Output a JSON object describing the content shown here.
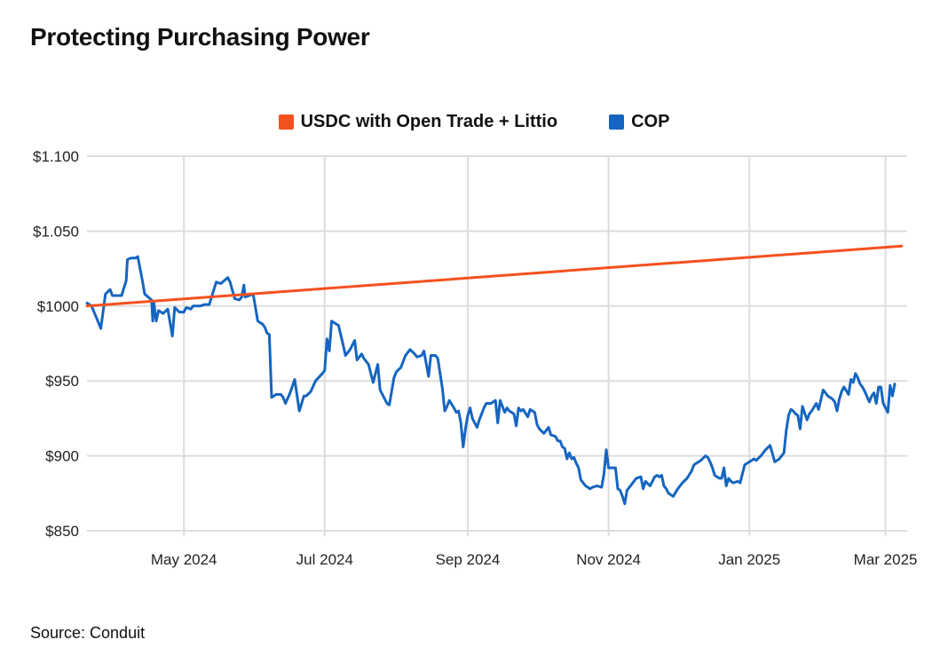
{
  "chart_data": {
    "type": "line",
    "title": "Protecting Purchasing Power",
    "xlabel": "",
    "ylabel": "",
    "ylim": [
      850,
      1100
    ],
    "grid": true,
    "legend_position": "top-center",
    "y_ticks": [
      {
        "value": 850,
        "label": "$850"
      },
      {
        "value": 900,
        "label": "$900"
      },
      {
        "value": 950,
        "label": "$950"
      },
      {
        "value": 1000,
        "label": "$1000"
      },
      {
        "value": 1050,
        "label": "$1.050"
      },
      {
        "value": 1100,
        "label": "$1.100"
      }
    ],
    "x_range": [
      0,
      348
    ],
    "x_ticks": [
      {
        "day": 42,
        "label": "May 2024"
      },
      {
        "day": 103,
        "label": "Jul 2024"
      },
      {
        "day": 165,
        "label": "Sep 2024"
      },
      {
        "day": 226,
        "label": "Nov 2024"
      },
      {
        "day": 287,
        "label": "Jan 2025"
      },
      {
        "day": 346,
        "label": "Mar 2025"
      }
    ],
    "series": [
      {
        "name": "USDC with Open Trade + Littio",
        "color": "#f4511e",
        "points": [
          [
            0,
            1000
          ],
          [
            353,
            1040
          ]
        ]
      },
      {
        "name": "COP",
        "color": "#1565c0",
        "points": [
          [
            0,
            1002
          ],
          [
            2,
            1000
          ],
          [
            6,
            985
          ],
          [
            8,
            1008
          ],
          [
            10,
            1011
          ],
          [
            11,
            1007
          ],
          [
            15,
            1007
          ],
          [
            17,
            1017
          ],
          [
            17.5,
            1031
          ],
          [
            19,
            1032
          ],
          [
            21,
            1032
          ],
          [
            22,
            1033
          ],
          [
            24,
            1017
          ],
          [
            25,
            1008
          ],
          [
            28,
            1004
          ],
          [
            28.5,
            990
          ],
          [
            29,
            1002
          ],
          [
            30,
            990
          ],
          [
            31,
            997
          ],
          [
            33,
            995
          ],
          [
            35,
            998
          ],
          [
            37,
            980
          ],
          [
            38,
            999
          ],
          [
            40,
            996
          ],
          [
            42,
            996
          ],
          [
            43,
            999
          ],
          [
            45,
            998
          ],
          [
            46,
            1000
          ],
          [
            49,
            1000
          ],
          [
            51,
            1001
          ],
          [
            53,
            1001
          ],
          [
            56,
            1016
          ],
          [
            58,
            1015
          ],
          [
            61,
            1019
          ],
          [
            62,
            1016
          ],
          [
            64,
            1005
          ],
          [
            66,
            1004
          ],
          [
            67,
            1006
          ],
          [
            68,
            1014
          ],
          [
            68.5,
            1006
          ],
          [
            72,
            1008
          ],
          [
            74,
            990
          ],
          [
            76,
            988
          ],
          [
            77,
            986
          ],
          [
            78,
            982
          ],
          [
            79,
            981
          ],
          [
            80,
            939
          ],
          [
            82,
            941
          ],
          [
            84,
            941
          ],
          [
            85,
            939
          ],
          [
            86,
            935
          ],
          [
            88,
            942
          ],
          [
            90,
            951
          ],
          [
            92,
            930
          ],
          [
            94,
            940
          ],
          [
            95,
            940
          ],
          [
            97,
            943
          ],
          [
            99,
            950
          ],
          [
            102,
            955
          ],
          [
            103,
            957
          ],
          [
            104,
            978
          ],
          [
            105,
            970
          ],
          [
            106,
            990
          ],
          [
            108,
            988
          ],
          [
            109,
            987
          ],
          [
            111,
            974
          ],
          [
            112,
            967
          ],
          [
            114,
            971
          ],
          [
            116,
            977
          ],
          [
            117,
            964
          ],
          [
            119,
            968
          ],
          [
            120,
            965
          ],
          [
            122,
            961
          ],
          [
            124,
            949
          ],
          [
            126,
            961
          ],
          [
            127,
            944
          ],
          [
            129,
            938
          ],
          [
            130,
            935
          ],
          [
            131,
            934
          ],
          [
            133,
            952
          ],
          [
            134,
            956
          ],
          [
            136,
            959
          ],
          [
            138,
            967
          ],
          [
            140,
            971
          ],
          [
            142,
            968
          ],
          [
            143,
            966
          ],
          [
            145,
            967
          ],
          [
            146,
            970
          ],
          [
            148,
            953
          ],
          [
            149,
            967
          ],
          [
            151,
            967
          ],
          [
            152,
            965
          ],
          [
            154,
            945
          ],
          [
            155,
            930
          ],
          [
            156,
            933
          ],
          [
            157,
            937
          ],
          [
            159,
            932
          ],
          [
            160,
            929
          ],
          [
            161,
            930
          ],
          [
            162,
            922
          ],
          [
            163,
            906
          ],
          [
            164,
            918
          ],
          [
            165,
            927
          ],
          [
            166,
            932
          ],
          [
            167,
            925
          ],
          [
            169,
            919
          ],
          [
            170,
            924
          ],
          [
            172,
            932
          ],
          [
            173,
            935
          ],
          [
            175,
            935
          ],
          [
            177,
            937
          ],
          [
            178,
            922
          ],
          [
            179,
            937
          ],
          [
            181,
            929
          ],
          [
            182,
            932
          ],
          [
            183,
            930
          ],
          [
            185,
            928
          ],
          [
            186,
            920
          ],
          [
            187,
            932
          ],
          [
            188,
            930
          ],
          [
            189,
            931
          ],
          [
            191,
            926
          ],
          [
            192,
            931
          ],
          [
            194,
            929
          ],
          [
            195,
            921
          ],
          [
            196,
            918
          ],
          [
            198,
            915
          ],
          [
            200,
            919
          ],
          [
            201,
            914
          ],
          [
            203,
            913
          ],
          [
            204,
            910
          ],
          [
            205,
            910
          ],
          [
            206,
            906
          ],
          [
            207,
            905
          ],
          [
            208,
            898
          ],
          [
            209,
            902
          ],
          [
            210,
            898
          ],
          [
            211,
            899
          ],
          [
            212,
            895
          ],
          [
            213,
            892
          ],
          [
            214,
            884
          ],
          [
            215,
            882
          ],
          [
            216,
            880
          ],
          [
            218,
            878
          ],
          [
            219,
            879
          ],
          [
            221,
            880
          ],
          [
            223,
            879
          ],
          [
            224,
            888
          ],
          [
            225,
            904
          ],
          [
            226,
            892
          ],
          [
            228,
            892
          ],
          [
            229,
            892
          ],
          [
            230,
            878
          ],
          [
            231,
            877
          ],
          [
            232,
            873
          ],
          [
            233,
            868
          ],
          [
            234,
            877
          ],
          [
            236,
            881
          ],
          [
            238,
            885
          ],
          [
            240,
            886
          ],
          [
            241,
            878
          ],
          [
            242,
            883
          ],
          [
            244,
            880
          ],
          [
            246,
            886
          ],
          [
            247,
            887
          ],
          [
            248,
            886
          ],
          [
            249,
            887
          ],
          [
            250,
            880
          ],
          [
            251,
            878
          ],
          [
            252,
            875
          ],
          [
            254,
            873
          ],
          [
            256,
            878
          ],
          [
            258,
            882
          ],
          [
            260,
            885
          ],
          [
            262,
            890
          ],
          [
            263,
            894
          ],
          [
            264,
            895
          ],
          [
            266,
            897
          ],
          [
            268,
            900
          ],
          [
            269,
            899
          ],
          [
            270,
            896
          ],
          [
            271,
            892
          ],
          [
            272,
            887
          ],
          [
            274,
            885
          ],
          [
            275,
            885
          ],
          [
            276,
            892
          ],
          [
            277,
            880
          ],
          [
            278,
            885
          ],
          [
            279,
            883
          ],
          [
            280,
            882
          ],
          [
            282,
            883
          ],
          [
            283,
            882
          ],
          [
            285,
            894
          ],
          [
            287,
            896
          ],
          [
            288,
            897
          ],
          [
            289,
            898
          ],
          [
            290,
            897
          ],
          [
            292,
            900
          ],
          [
            293,
            902
          ],
          [
            294,
            904
          ],
          [
            296,
            907
          ],
          [
            298,
            896
          ],
          [
            300,
            898
          ],
          [
            302,
            902
          ],
          [
            303,
            917
          ],
          [
            304,
            927
          ],
          [
            305,
            931
          ],
          [
            306,
            930
          ],
          [
            307,
            928
          ],
          [
            308,
            927
          ],
          [
            309,
            918
          ],
          [
            310,
            933
          ],
          [
            312,
            924
          ],
          [
            313,
            928
          ],
          [
            314,
            930
          ],
          [
            316,
            935
          ],
          [
            317,
            931
          ],
          [
            319,
            944
          ],
          [
            321,
            940
          ],
          [
            323,
            938
          ],
          [
            324,
            936
          ],
          [
            325,
            930
          ],
          [
            326,
            938
          ],
          [
            327,
            943
          ],
          [
            328,
            946
          ],
          [
            330,
            941
          ],
          [
            331,
            951
          ],
          [
            332,
            949
          ],
          [
            333,
            955
          ],
          [
            334,
            952
          ],
          [
            335,
            948
          ],
          [
            336,
            946
          ],
          [
            337,
            943
          ],
          [
            339,
            936
          ],
          [
            340,
            940
          ],
          [
            341,
            942
          ],
          [
            342,
            935
          ],
          [
            343,
            946
          ],
          [
            344,
            946
          ],
          [
            345,
            935
          ],
          [
            346,
            932
          ],
          [
            347,
            929
          ],
          [
            348,
            947
          ],
          [
            349,
            940
          ],
          [
            350,
            948
          ]
        ]
      }
    ],
    "source": "Source: Conduit"
  }
}
